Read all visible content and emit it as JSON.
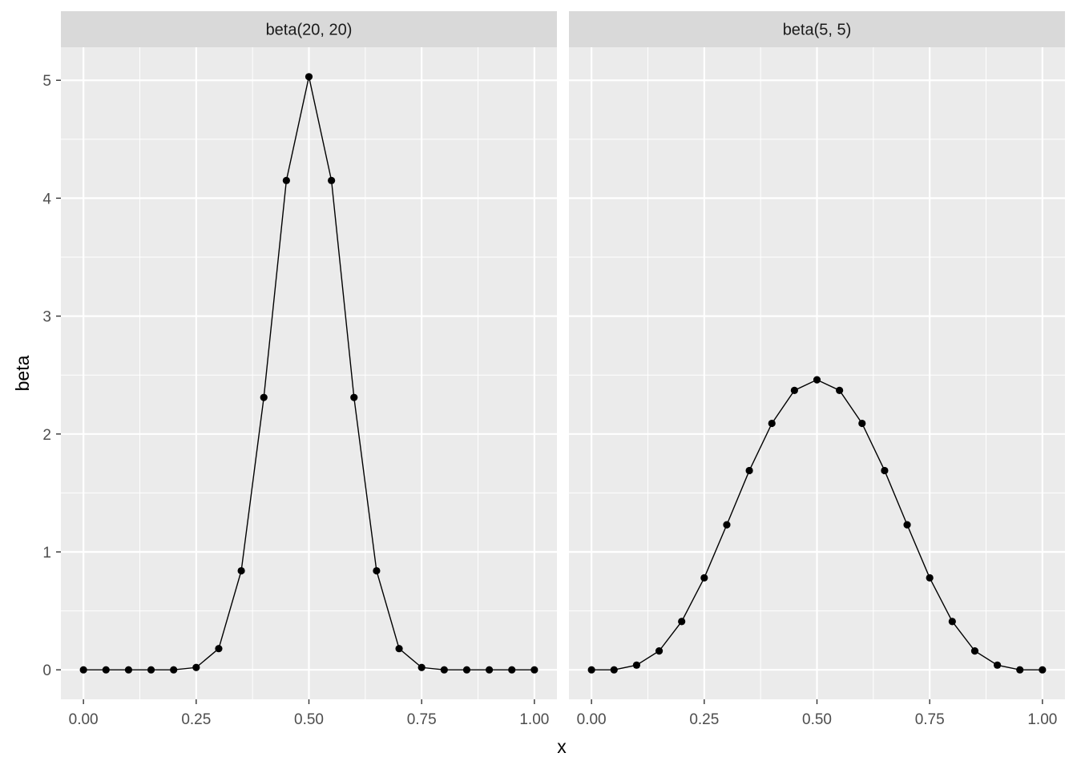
{
  "chart_data": {
    "type": "line",
    "facets": [
      {
        "title": "beta(20, 20)",
        "x": [
          0.0,
          0.05,
          0.1,
          0.15,
          0.2,
          0.25,
          0.3,
          0.35,
          0.4,
          0.45,
          0.5,
          0.55,
          0.6,
          0.65,
          0.7,
          0.75,
          0.8,
          0.85,
          0.9,
          0.95,
          1.0
        ],
        "y": [
          0.0,
          0.0,
          0.0,
          0.0,
          0.0,
          0.02,
          0.18,
          0.84,
          2.31,
          4.15,
          5.03,
          4.15,
          2.31,
          0.84,
          0.18,
          0.02,
          0.0,
          0.0,
          0.0,
          0.0,
          0.0
        ]
      },
      {
        "title": "beta(5, 5)",
        "x": [
          0.0,
          0.05,
          0.1,
          0.15,
          0.2,
          0.25,
          0.3,
          0.35,
          0.4,
          0.45,
          0.5,
          0.55,
          0.6,
          0.65,
          0.7,
          0.75,
          0.8,
          0.85,
          0.9,
          0.95,
          1.0
        ],
        "y": [
          0.0,
          0.0,
          0.04,
          0.16,
          0.41,
          0.78,
          1.23,
          1.69,
          2.09,
          2.37,
          2.46,
          2.37,
          2.09,
          1.69,
          1.23,
          0.78,
          0.41,
          0.16,
          0.04,
          0.0,
          0.0
        ]
      }
    ],
    "xlabel": "x",
    "ylabel": "beta",
    "xticks": [
      "0.00",
      "0.25",
      "0.50",
      "0.75",
      "1.00"
    ],
    "xtick_values": [
      0,
      0.25,
      0.5,
      0.75,
      1.0
    ],
    "yticks": [
      "0",
      "1",
      "2",
      "3",
      "4",
      "5"
    ],
    "ytick_values": [
      0,
      1,
      2,
      3,
      4,
      5
    ],
    "xlim": [
      -0.05,
      1.05
    ],
    "ylim": [
      -0.25,
      5.28
    ],
    "grid": true,
    "legend": "none",
    "colors": {
      "panel_background": "#ebebeb",
      "strip_background": "#d9d9d9",
      "grid_line": "#ffffff",
      "series": "#000000"
    }
  }
}
